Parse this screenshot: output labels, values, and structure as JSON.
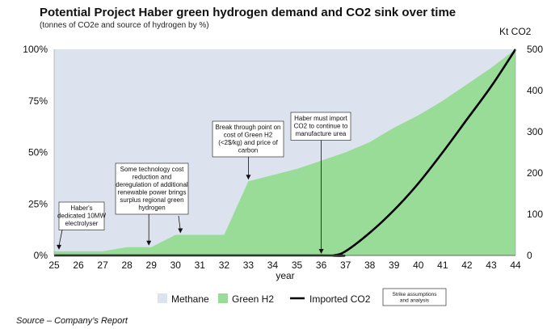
{
  "chart_data": {
    "type": "area",
    "title": "Potential Project Haber green hydrogen demand and CO2 sink over time",
    "subtitle": "(tonnes of CO2e and source of hydrogen by %)",
    "xlabel": "year",
    "ylabel_right": "Kt CO2",
    "x": [
      25,
      26,
      27,
      28,
      29,
      30,
      31,
      32,
      33,
      34,
      35,
      36,
      37,
      38,
      39,
      40,
      41,
      42,
      43,
      44
    ],
    "ylim_left": [
      0,
      100
    ],
    "ylim_right": [
      0,
      500
    ],
    "left_ticks": [
      "0%",
      "25%",
      "50%",
      "75%",
      "100%"
    ],
    "right_ticks": [
      "0",
      "100",
      "200",
      "300",
      "400",
      "500"
    ],
    "series": [
      {
        "name": "Methane",
        "type": "area",
        "color": "#dde3ee",
        "axis": "left",
        "values": [
          98,
          98,
          98,
          96,
          96,
          90,
          90,
          90,
          64,
          61,
          58,
          54,
          50,
          45,
          38,
          32,
          25,
          17,
          9,
          0
        ]
      },
      {
        "name": "Green H2",
        "type": "area",
        "color": "#99dc98",
        "axis": "left",
        "points": [
          [
            25,
            2
          ],
          [
            27,
            2
          ],
          [
            28,
            4
          ],
          [
            29,
            4
          ],
          [
            30,
            10
          ],
          [
            31,
            10
          ],
          [
            32,
            10
          ],
          [
            33,
            36
          ],
          [
            34,
            39
          ],
          [
            35,
            42
          ],
          [
            36,
            46
          ],
          [
            37,
            50
          ],
          [
            38,
            55
          ],
          [
            39,
            62
          ],
          [
            40,
            68
          ],
          [
            41,
            75
          ],
          [
            42,
            83
          ],
          [
            43,
            91
          ],
          [
            44,
            100
          ]
        ]
      },
      {
        "name": "Imported CO2",
        "type": "line",
        "color": "#000000",
        "axis": "right",
        "points": [
          [
            25,
            0
          ],
          [
            36,
            0
          ],
          [
            36.5,
            0
          ],
          [
            37,
            10
          ],
          [
            38,
            55
          ],
          [
            39,
            110
          ],
          [
            40,
            175
          ],
          [
            41,
            250
          ],
          [
            42,
            330
          ],
          [
            43,
            410
          ],
          [
            44,
            500
          ]
        ]
      }
    ],
    "annotations": [
      {
        "x": 25.2,
        "y": 2,
        "lines": [
          "Haber's",
          "dedicated 10MW",
          "electrolyser"
        ]
      },
      {
        "x": 28.9,
        "y": 4,
        "lines": [
          "Some technology cost",
          "reduction and",
          "deregulation of additional",
          "renewable power brings",
          "surplus regional green",
          "hydrogen"
        ]
      },
      {
        "x": 30.2,
        "y": 10,
        "lines": []
      },
      {
        "x": 33,
        "y": 36,
        "lines": [
          "Break through point on",
          "cost of Green H2",
          "(<2$/kg) and price of",
          "carbon"
        ]
      },
      {
        "x": 36,
        "y": 0,
        "lines": [
          "Haber must import",
          "CO2 to continue to",
          "manufacture urea"
        ]
      }
    ],
    "legend": {
      "position": "bottom",
      "items": [
        {
          "label": "Methane",
          "kind": "swatch",
          "color": "#dde3ee"
        },
        {
          "label": "Green H2",
          "kind": "swatch",
          "color": "#99dc98"
        },
        {
          "label": "Imported CO2",
          "kind": "line",
          "color": "#000000"
        }
      ],
      "note_lines": [
        "Strike assumptions",
        "and analysis"
      ]
    },
    "grid": false
  },
  "source": "Source – Company’s Report"
}
